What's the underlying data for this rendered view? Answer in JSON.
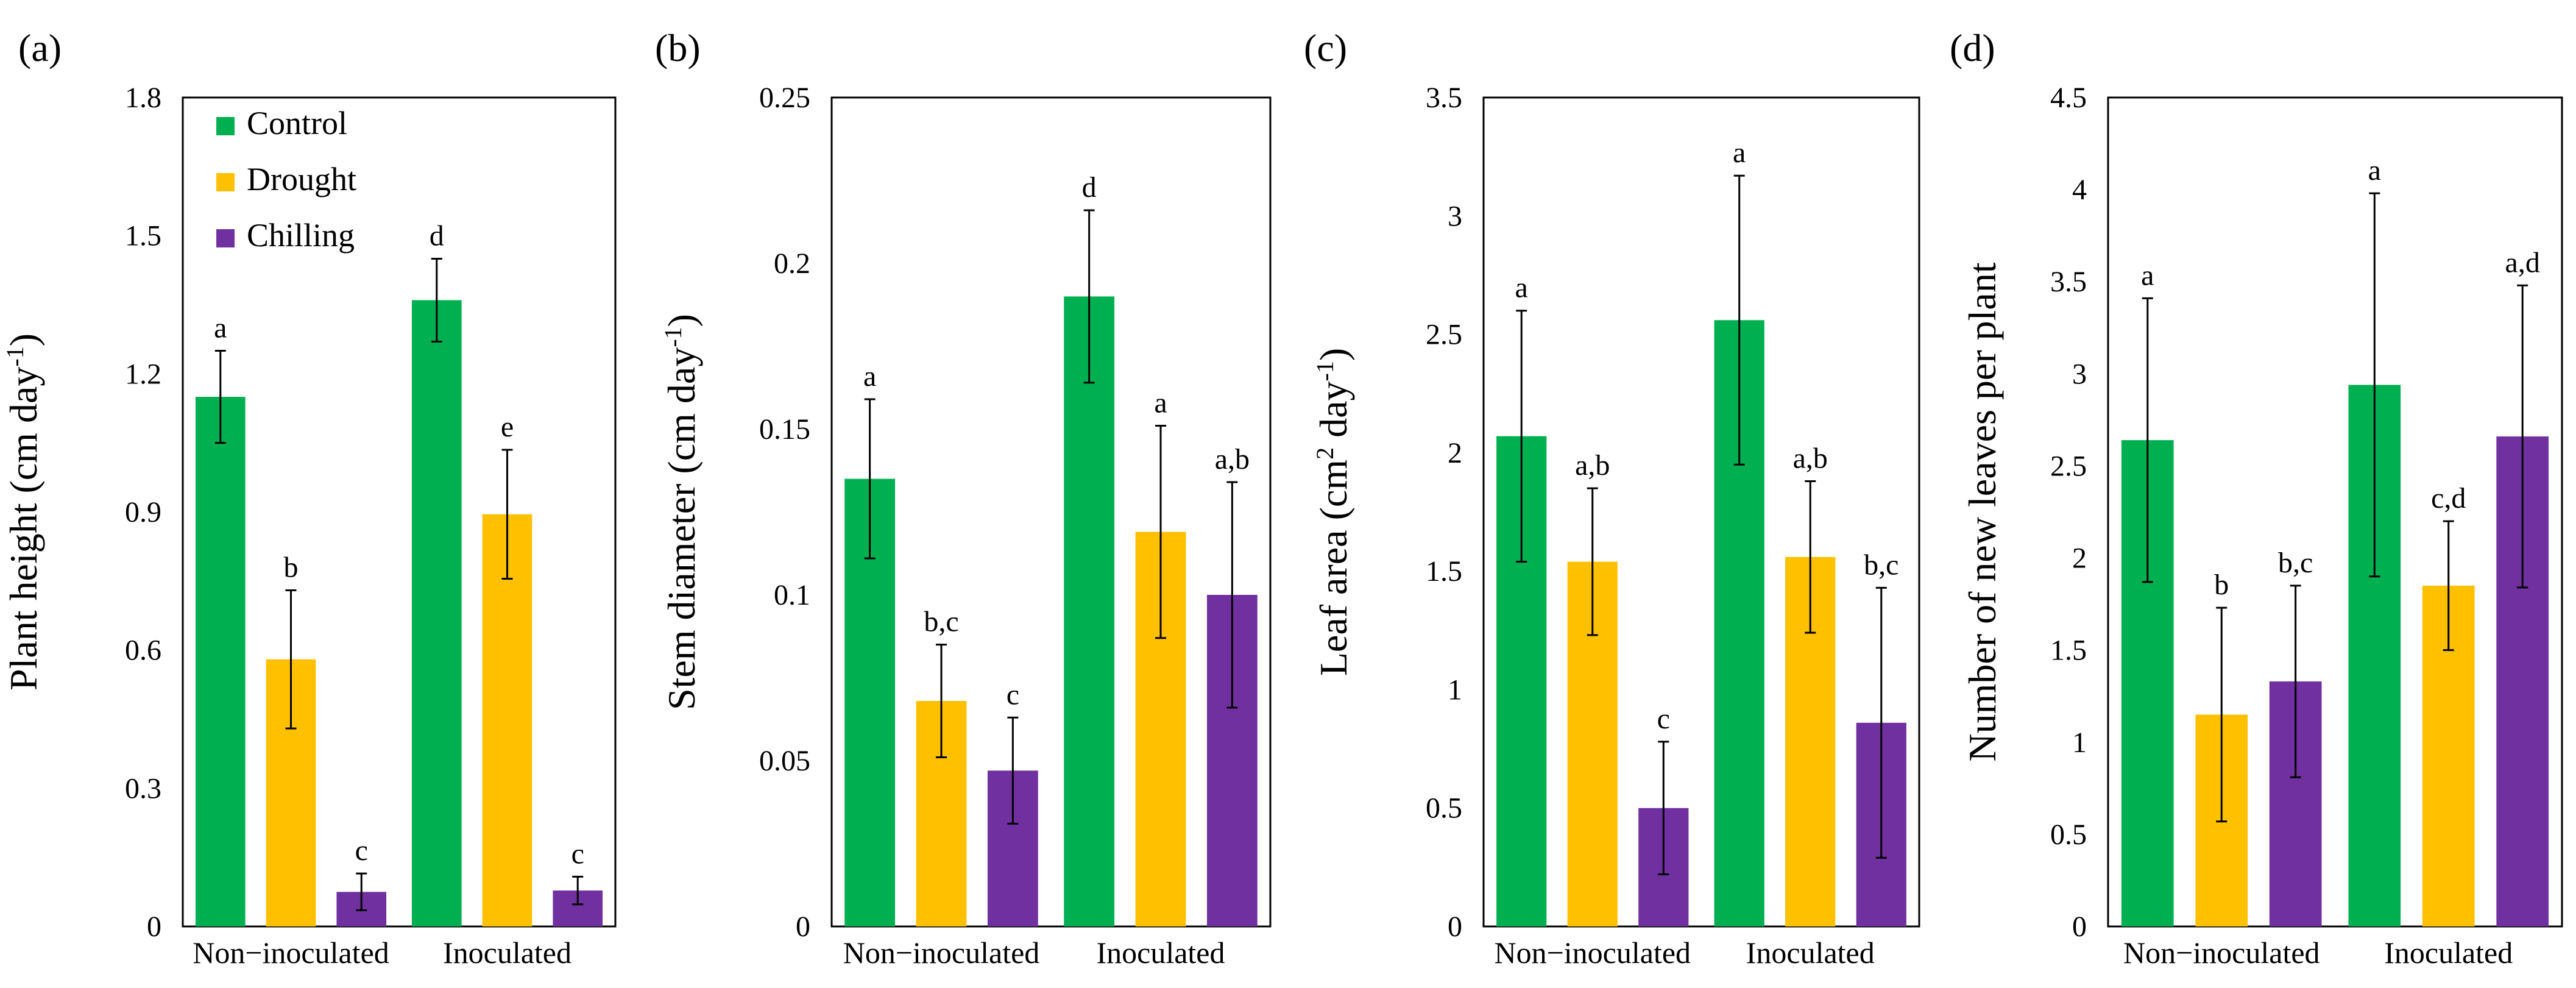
{
  "colors": {
    "Control": "#00b050",
    "Drought": "#ffc000",
    "Chilling": "#7030a0"
  },
  "legend": [
    "Control",
    "Drought",
    "Chilling"
  ],
  "chart_data": [
    {
      "type": "bar",
      "panel_label": "(a)",
      "ylabel": "Plant height (cm day",
      "ylabel_sup": "-1",
      "ylabel_tail": ")",
      "ylim": [
        0,
        1.8
      ],
      "yticks": [
        "0",
        "0.3",
        "0.6",
        "0.9",
        "1.2",
        "1.5",
        "1.8"
      ],
      "categories": [
        "Non−inoculated",
        "Inoculated"
      ],
      "series": [
        {
          "name": "Control",
          "values": [
            1.15,
            1.36
          ],
          "errors": [
            0.1,
            0.09
          ],
          "labels": [
            "a",
            "d"
          ]
        },
        {
          "name": "Drought",
          "values": [
            0.58,
            0.895
          ],
          "errors": [
            0.15,
            0.14
          ],
          "labels": [
            "b",
            "e"
          ]
        },
        {
          "name": "Chilling",
          "values": [
            0.075,
            0.078
          ],
          "errors": [
            0.04,
            0.03
          ],
          "labels": [
            "c",
            "c"
          ]
        }
      ]
    },
    {
      "type": "bar",
      "panel_label": "(b)",
      "ylabel": "Stem diameter (cm day",
      "ylabel_sup": "-1",
      "ylabel_tail": ")",
      "ylim": [
        0,
        0.25
      ],
      "yticks": [
        "0",
        "0.05",
        "0.1",
        "0.15",
        "0.2",
        "0.25"
      ],
      "categories": [
        "Non−inoculated",
        "Inoculated"
      ],
      "series": [
        {
          "name": "Control",
          "values": [
            0.135,
            0.19
          ],
          "errors": [
            0.024,
            0.026
          ],
          "labels": [
            "a",
            "d"
          ]
        },
        {
          "name": "Drought",
          "values": [
            0.068,
            0.119
          ],
          "errors": [
            0.017,
            0.032
          ],
          "labels": [
            "b,c",
            "a"
          ]
        },
        {
          "name": "Chilling",
          "values": [
            0.047,
            0.1
          ],
          "errors": [
            0.016,
            0.034
          ],
          "labels": [
            "c",
            "a,b"
          ]
        }
      ]
    },
    {
      "type": "bar",
      "panel_label": "(c)",
      "ylabel": "Leaf area (cm",
      "ylabel_sup": "2",
      "ylabel_tail": " day",
      "ylabel_sup2": "-1",
      "ylabel_tail2": ")",
      "ylim": [
        0,
        3.5
      ],
      "yticks": [
        "0",
        "0.5",
        "1",
        "1.5",
        "2",
        "2.5",
        "3",
        "3.5"
      ],
      "categories": [
        "Non−inoculated",
        "Inoculated"
      ],
      "series": [
        {
          "name": "Control",
          "values": [
            2.07,
            2.56
          ],
          "errors": [
            0.53,
            0.61
          ],
          "labels": [
            "a",
            "a"
          ]
        },
        {
          "name": "Drought",
          "values": [
            1.54,
            1.56
          ],
          "errors": [
            0.31,
            0.32
          ],
          "labels": [
            "a,b",
            "a,b"
          ]
        },
        {
          "name": "Chilling",
          "values": [
            0.5,
            0.86
          ],
          "errors": [
            0.28,
            0.57
          ],
          "labels": [
            "c",
            "b,c"
          ]
        }
      ]
    },
    {
      "type": "bar",
      "panel_label": "(d)",
      "ylabel": "Number of  new leaves per plant",
      "ylim": [
        0,
        4.5
      ],
      "yticks": [
        "0",
        "0.5",
        "1",
        "1.5",
        "2",
        "2.5",
        "3",
        "3.5",
        "4",
        "4.5"
      ],
      "categories": [
        "Non−inoculated",
        "Inoculated"
      ],
      "series": [
        {
          "name": "Control",
          "values": [
            2.64,
            2.94
          ],
          "errors": [
            0.77,
            1.04
          ],
          "labels": [
            "a",
            "a"
          ]
        },
        {
          "name": "Drought",
          "values": [
            1.15,
            1.85
          ],
          "errors": [
            0.58,
            0.35
          ],
          "labels": [
            "b",
            "c,d"
          ]
        },
        {
          "name": "Chilling",
          "values": [
            1.33,
            2.66
          ],
          "errors": [
            0.52,
            0.82
          ],
          "labels": [
            "b,c",
            "a,d"
          ]
        }
      ]
    }
  ]
}
